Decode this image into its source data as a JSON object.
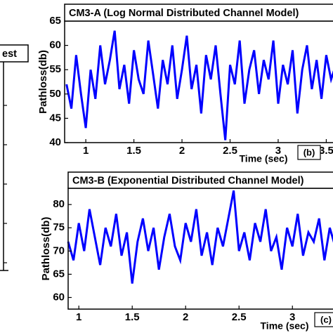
{
  "left_panel": {
    "title": "est"
  },
  "chart_data": [
    {
      "type": "line",
      "title": "CM3-A (Log Normal Distributed Channel Model)",
      "panel_label": "(b)",
      "xlabel": "Time (sec)",
      "ylabel": "Pathloss(db)",
      "color": "#0000ff",
      "x": [
        0.8,
        0.85,
        0.9,
        0.95,
        1.0,
        1.05,
        1.1,
        1.15,
        1.2,
        1.25,
        1.3,
        1.35,
        1.4,
        1.45,
        1.5,
        1.55,
        1.6,
        1.65,
        1.7,
        1.75,
        1.8,
        1.85,
        1.9,
        1.95,
        2.0,
        2.05,
        2.1,
        2.15,
        2.2,
        2.25,
        2.3,
        2.35,
        2.4,
        2.45,
        2.5,
        2.55,
        2.6,
        2.65,
        2.7,
        2.75,
        2.8,
        2.85,
        2.9,
        2.95,
        3.0,
        3.05,
        3.1,
        3.15,
        3.2,
        3.25,
        3.3,
        3.35,
        3.4,
        3.45,
        3.5,
        3.55,
        3.6
      ],
      "values": [
        52,
        47,
        58,
        50,
        43,
        55,
        49,
        60,
        52,
        57,
        63,
        51,
        56,
        48,
        59,
        53,
        50,
        61,
        54,
        47,
        57,
        52,
        60,
        49,
        55,
        62,
        51,
        56,
        46,
        58,
        53,
        60,
        50,
        40.5,
        56,
        52,
        61,
        48,
        55,
        59,
        50,
        57,
        53,
        61,
        48,
        56,
        52,
        59,
        46,
        55,
        60,
        51,
        57,
        49,
        58,
        53,
        56
      ],
      "xlim": [
        0.78,
        3.57
      ],
      "xticks": [
        1,
        1.5,
        2,
        2.5,
        3,
        3.5
      ],
      "ylim": [
        40,
        65
      ],
      "yticks": [
        40,
        45,
        50,
        55,
        60,
        65
      ]
    },
    {
      "type": "line",
      "title": "CM3-B (Exponential Distributed Channel Model)",
      "panel_label": "(c)",
      "xlabel": "Time (sec)",
      "ylabel": "Pathloss(db)",
      "color": "#0000ff",
      "x": [
        0.9,
        0.95,
        1.0,
        1.05,
        1.1,
        1.15,
        1.2,
        1.25,
        1.3,
        1.35,
        1.4,
        1.45,
        1.5,
        1.55,
        1.6,
        1.65,
        1.7,
        1.75,
        1.8,
        1.85,
        1.9,
        1.95,
        2.0,
        2.05,
        2.1,
        2.15,
        2.2,
        2.25,
        2.3,
        2.35,
        2.4,
        2.45,
        2.5,
        2.55,
        2.6,
        2.65,
        2.7,
        2.75,
        2.8,
        2.85,
        2.9,
        2.95,
        3.0,
        3.05,
        3.1,
        3.15,
        3.2,
        3.25,
        3.3,
        3.35,
        3.4
      ],
      "values": [
        72,
        68,
        76,
        70,
        79,
        73,
        67,
        75,
        71,
        78,
        69,
        74,
        63,
        72,
        77,
        70,
        75,
        66,
        73,
        78,
        71,
        68,
        76,
        72,
        79,
        69,
        74,
        67,
        75,
        71,
        77,
        83,
        70,
        74,
        68,
        76,
        72,
        79,
        70,
        73,
        66,
        75,
        71,
        78,
        69,
        74,
        72,
        77,
        68,
        75,
        71
      ],
      "xlim": [
        0.9,
        3.38
      ],
      "xticks": [
        1,
        1.5,
        2,
        2.5,
        3
      ],
      "ylim": [
        57.5,
        83.5
      ],
      "yticks": [
        60,
        65,
        70,
        75,
        80
      ]
    }
  ]
}
